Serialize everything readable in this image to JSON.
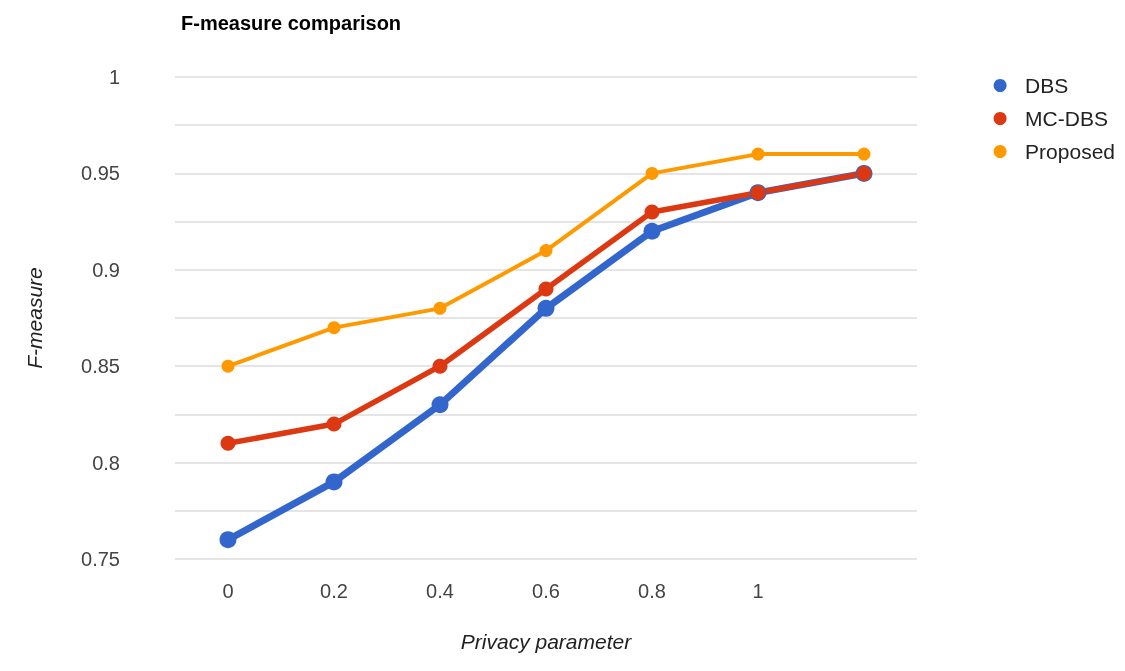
{
  "chart_data": {
    "type": "line",
    "title": "F-measure comparison",
    "xlabel": "Privacy parameter",
    "ylabel": "F-measure",
    "categories": [
      "0",
      "0.2",
      "0.4",
      "0.6",
      "0.8",
      "1",
      null
    ],
    "series": [
      {
        "name": "DBS",
        "color": "#3366cc",
        "values": [
          0.76,
          0.79,
          0.83,
          0.88,
          0.92,
          0.94,
          0.95
        ]
      },
      {
        "name": "MC-DBS",
        "color": "#dc3912",
        "values": [
          0.81,
          0.82,
          0.85,
          0.89,
          0.93,
          0.94,
          0.95
        ]
      },
      {
        "name": "Proposed",
        "color": "#ff9900",
        "values": [
          0.85,
          0.87,
          0.88,
          0.91,
          0.95,
          0.96,
          0.96
        ]
      }
    ],
    "ylim": [
      0.75,
      1
    ],
    "yticks": [
      0.75,
      {
        "value": 0.775,
        "label": null
      },
      0.8,
      {
        "value": 0.825,
        "label": null
      },
      0.85,
      {
        "value": 0.875,
        "label": null
      },
      0.9,
      {
        "value": 0.925,
        "label": null
      },
      0.95,
      {
        "value": 0.975,
        "label": null
      },
      1
    ],
    "grid": "y",
    "legend": "right",
    "marker": "circle",
    "line_style": "solid"
  }
}
